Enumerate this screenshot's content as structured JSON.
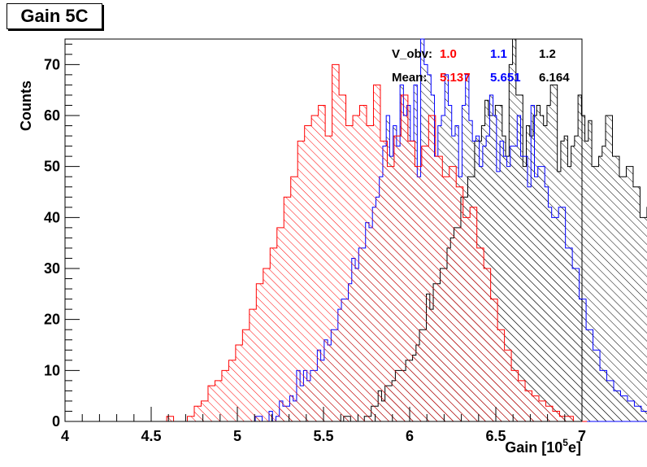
{
  "chart_data": {
    "type": "histogram",
    "title": "Gain 5C",
    "xlabel": "Gain [10",
    "xlabel_sup": "5",
    "xlabel_suffix": "e]",
    "ylabel": "Counts",
    "xlim": [
      4,
      7
    ],
    "ylim": [
      0,
      75
    ],
    "x_ticks": [
      "4",
      "4.5",
      "5",
      "5.5",
      "6",
      "6.5",
      "7"
    ],
    "y_ticks": [
      "0",
      "10",
      "20",
      "30",
      "40",
      "50",
      "60",
      "70"
    ],
    "legend": {
      "header_label": "V_obv:",
      "mean_label": "Mean:",
      "entries": [
        {
          "v_obv": "1.0",
          "mean": "5.137",
          "color": "#ff0000"
        },
        {
          "v_obv": "1.1",
          "mean": "5.651",
          "color": "#0000ff"
        },
        {
          "v_obv": "1.2",
          "mean": "6.164",
          "color": "#000000"
        }
      ]
    },
    "series": [
      {
        "color": "#ff0000",
        "mean": 5.137,
        "x_start": 4.55,
        "bin_width": 0.02,
        "values": [
          0,
          0,
          1,
          1,
          0,
          0,
          0,
          0,
          1,
          1,
          3,
          3,
          4,
          4,
          7,
          7,
          8,
          8,
          10,
          10,
          12,
          12,
          15,
          15,
          18,
          18,
          22,
          22,
          27,
          27,
          30,
          30,
          34,
          34,
          38,
          38,
          44,
          44,
          48,
          48,
          55,
          55,
          58,
          58,
          60,
          60,
          62,
          62,
          56,
          56,
          70,
          70,
          64,
          64,
          58,
          58,
          60,
          60,
          62,
          62,
          58,
          58,
          66,
          66,
          55,
          55,
          50,
          50,
          56,
          56,
          64,
          64,
          55,
          55,
          50,
          50,
          54,
          54,
          60,
          60,
          52,
          52,
          48,
          48,
          50,
          50,
          46,
          46,
          40,
          40,
          42,
          42,
          34,
          34,
          30,
          30,
          24,
          24,
          18,
          18,
          14,
          14,
          10,
          10,
          8,
          8,
          6,
          6,
          5,
          5,
          4,
          4,
          3,
          3,
          2,
          2,
          1,
          1,
          1,
          1,
          0,
          0,
          0,
          0
        ]
      }
    ]
  }
}
